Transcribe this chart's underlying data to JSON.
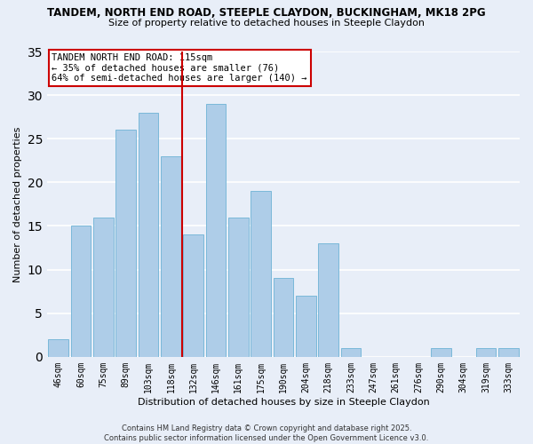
{
  "title1": "TANDEM, NORTH END ROAD, STEEPLE CLAYDON, BUCKINGHAM, MK18 2PG",
  "title2": "Size of property relative to detached houses in Steeple Claydon",
  "xlabel": "Distribution of detached houses by size in Steeple Claydon",
  "ylabel": "Number of detached properties",
  "bar_labels": [
    "46sqm",
    "60sqm",
    "75sqm",
    "89sqm",
    "103sqm",
    "118sqm",
    "132sqm",
    "146sqm",
    "161sqm",
    "175sqm",
    "190sqm",
    "204sqm",
    "218sqm",
    "233sqm",
    "247sqm",
    "261sqm",
    "276sqm",
    "290sqm",
    "304sqm",
    "319sqm",
    "333sqm"
  ],
  "bar_values": [
    2,
    15,
    16,
    26,
    28,
    23,
    14,
    29,
    16,
    19,
    9,
    7,
    13,
    1,
    0,
    0,
    0,
    1,
    0,
    1,
    1
  ],
  "bar_color": "#aecde8",
  "bar_edge_color": "#7ab8d9",
  "vline_x": 5.5,
  "vline_color": "#cc0000",
  "annotation_title": "TANDEM NORTH END ROAD: 115sqm",
  "annotation_line1": "← 35% of detached houses are smaller (76)",
  "annotation_line2": "64% of semi-detached houses are larger (140) →",
  "annotation_box_color": "#ffffff",
  "annotation_box_edge": "#cc0000",
  "ylim": [
    0,
    35
  ],
  "yticks": [
    0,
    5,
    10,
    15,
    20,
    25,
    30,
    35
  ],
  "background_color": "#e8eef8",
  "grid_color": "#ffffff",
  "footer1": "Contains HM Land Registry data © Crown copyright and database right 2025.",
  "footer2": "Contains public sector information licensed under the Open Government Licence v3.0."
}
